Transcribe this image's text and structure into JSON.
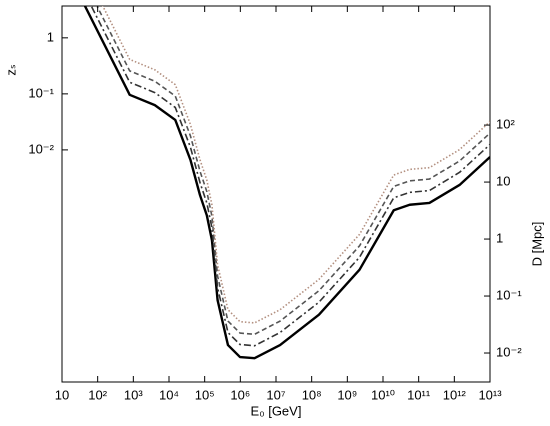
{
  "chart_data": {
    "type": "line",
    "xlabel": "E₀ [GeV]",
    "ylabel": "zₛ",
    "y2label": "D [Mpc]",
    "xscale": "log",
    "yscale": "log",
    "y2scale": "log",
    "xlim": [
      10,
      10000000000000
    ],
    "ylim": [
      7.2e-07,
      3.7
    ],
    "y2lim": [
      0.0031,
      12300
    ],
    "xticks": [
      10,
      {
        "value": 100,
        "label": "10²"
      },
      {
        "value": 1000,
        "label": "10³"
      },
      {
        "value": 10000,
        "label": "10⁴"
      },
      {
        "value": 100000,
        "label": "10⁵"
      },
      {
        "value": 1000000,
        "label": "10⁶"
      },
      {
        "value": 10000000,
        "label": "10⁷"
      },
      {
        "value": 100000000,
        "label": "10⁸"
      },
      {
        "value": 1000000000,
        "label": "10⁹"
      },
      {
        "value": 10000000000,
        "label": "10¹⁰"
      },
      {
        "value": 100000000000,
        "label": "10¹¹"
      },
      {
        "value": 1000000000000,
        "label": "10¹²"
      },
      {
        "value": 10000000000000,
        "label": "10¹³"
      }
    ],
    "yticks": [
      1,
      {
        "value": 0.1,
        "label": "10⁻¹"
      },
      {
        "value": 0.01,
        "label": "10⁻²"
      }
    ],
    "y2ticks": [
      {
        "value": 100,
        "label": "10²"
      },
      10,
      1,
      {
        "value": 0.1,
        "label": "10⁻¹"
      },
      {
        "value": 0.01,
        "label": "10⁻²"
      }
    ],
    "x": [
      44,
      790,
      4000,
      15000,
      40000,
      74000,
      115000,
      160000,
      230000,
      450000,
      980000,
      2500000,
      13000000,
      160000000,
      2200000000,
      20000000000,
      56000000000,
      200000000000,
      1400000000000,
      10000000000000
    ],
    "series": [
      {
        "color": "#000000",
        "dash": "none",
        "axis": "y2",
        "values": [
          12300,
          340,
          224,
          123,
          24.5,
          5.9,
          2.6,
          0.95,
          0.085,
          0.0138,
          0.0085,
          0.0081,
          0.0138,
          0.047,
          0.29,
          3.2,
          4.0,
          4.3,
          8.9,
          27.5
        ]
      },
      {
        "color": "#333333",
        "dash": "7,3,2,3",
        "axis": "y2",
        "values": [
          20400,
          565,
          372,
          204,
          40.7,
          9.8,
          4.3,
          1.58,
          0.141,
          0.0229,
          0.0141,
          0.0134,
          0.0229,
          0.078,
          0.48,
          5.3,
          6.6,
          7.1,
          14.8,
          45.6
        ]
      },
      {
        "color": "#555555",
        "dash": "5,3",
        "axis": "y2",
        "values": [
          32300,
          894,
          589,
          323,
          64.4,
          15.5,
          6.8,
          2.5,
          0.224,
          0.0363,
          0.0224,
          0.0213,
          0.0363,
          0.124,
          0.76,
          8.4,
          10.5,
          11.3,
          23.4,
          72.3
        ]
      },
      {
        "color": "#b39080",
        "dash": "1.5,2",
        "axis": "y2",
        "values": [
          51300,
          1420,
          934,
          513,
          102,
          24.6,
          10.8,
          3.96,
          0.354,
          0.0575,
          0.0354,
          0.0338,
          0.0575,
          0.196,
          1.21,
          13.3,
          16.7,
          17.9,
          37.1,
          115
        ]
      }
    ]
  }
}
